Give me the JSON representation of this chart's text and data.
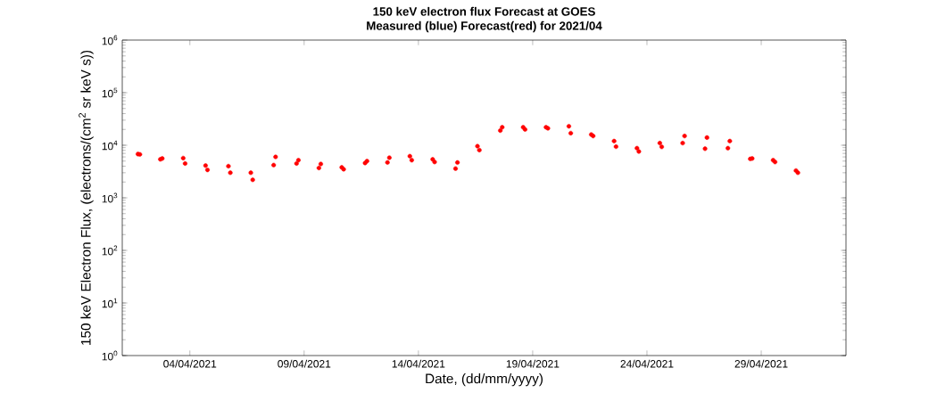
{
  "chart_data": {
    "type": "scatter",
    "title": "150 keV electron flux Forecast at GOES",
    "subtitle": "Measured (blue) Forecast(red) for 2021/04",
    "xlabel": "Date, (dd/mm/yyyy)",
    "ylabel": "150 keV Electron Flux, (electrons/(cm$^{2}$ sr keV s))",
    "x": [
      "2021-04-01T17:30",
      "2021-04-01T19:30",
      "2021-04-02T17:00",
      "2021-04-02T19:00",
      "2021-04-03T17:00",
      "2021-04-03T19:00",
      "2021-04-04T16:30",
      "2021-04-04T18:30",
      "2021-04-05T16:30",
      "2021-04-05T18:30",
      "2021-04-06T16:00",
      "2021-04-06T18:00",
      "2021-04-07T16:00",
      "2021-04-07T18:00",
      "2021-04-08T16:00",
      "2021-04-08T18:00",
      "2021-04-09T15:30",
      "2021-04-09T17:30",
      "2021-04-10T15:30",
      "2021-04-10T17:30",
      "2021-04-11T16:00",
      "2021-04-11T18:00",
      "2021-04-12T15:30",
      "2021-04-12T17:30",
      "2021-04-13T15:00",
      "2021-04-13T17:00",
      "2021-04-14T15:00",
      "2021-04-14T17:00",
      "2021-04-15T15:00",
      "2021-04-15T17:00",
      "2021-04-16T14:00",
      "2021-04-16T16:00",
      "2021-04-17T14:00",
      "2021-04-17T16:00",
      "2021-04-18T14:00",
      "2021-04-18T16:00",
      "2021-04-19T14:00",
      "2021-04-19T16:00",
      "2021-04-20T14:00",
      "2021-04-20T16:00",
      "2021-04-21T13:30",
      "2021-04-21T15:30",
      "2021-04-22T13:30",
      "2021-04-22T15:30",
      "2021-04-23T13:30",
      "2021-04-23T15:30",
      "2021-04-24T13:30",
      "2021-04-24T15:30",
      "2021-04-25T13:30",
      "2021-04-25T15:30",
      "2021-04-26T13:00",
      "2021-04-26T15:00",
      "2021-04-27T13:00",
      "2021-04-27T15:00",
      "2021-04-28T12:30",
      "2021-04-28T14:30",
      "2021-04-29T12:30",
      "2021-04-29T14:30",
      "2021-04-30T12:30",
      "2021-04-30T14:30"
    ],
    "series": [
      {
        "color": "#ff0000",
        "values": [
          6800,
          6700,
          5400,
          5600,
          5700,
          4500,
          4100,
          3400,
          4000,
          3000,
          3000,
          2200,
          4200,
          6000,
          4500,
          5200,
          3700,
          4400,
          3800,
          3500,
          4600,
          5000,
          4700,
          5800,
          6200,
          5200,
          5400,
          4800,
          3600,
          4700,
          9600,
          8100,
          19000,
          22000,
          22000,
          20000,
          22000,
          21000,
          23000,
          17000,
          16000,
          15000,
          12000,
          9400,
          8800,
          7600,
          11000,
          9300,
          11000,
          15000,
          8600,
          14000,
          8800,
          12000,
          5500,
          5600,
          5200,
          4800,
          3300,
          3000
        ]
      }
    ],
    "xlim": [
      "2021-04-01T01:00",
      "2021-05-02T17:00"
    ],
    "xticks": [
      {
        "value": "2021-04-04",
        "label": "04/04/2021"
      },
      {
        "value": "2021-04-09",
        "label": "09/04/2021"
      },
      {
        "value": "2021-04-14",
        "label": "14/04/2021"
      },
      {
        "value": "2021-04-19",
        "label": "19/04/2021"
      },
      {
        "value": "2021-04-24",
        "label": "24/04/2021"
      },
      {
        "value": "2021-04-29",
        "label": "29/04/2021"
      }
    ],
    "ylim": [
      1,
      1000000
    ],
    "log": "y",
    "yticks": [
      {
        "value": 1,
        "label": "10$^{0}$"
      },
      {
        "value": 10,
        "label": "10$^{1}$"
      },
      {
        "value": 100,
        "label": "10$^{2}$"
      },
      {
        "value": 1000,
        "label": "10$^{3}$"
      },
      {
        "value": 10000,
        "label": "10$^{4}$"
      },
      {
        "value": 100000,
        "label": "10$^{5}$"
      },
      {
        "value": 1000000,
        "label": "10$^{6}$"
      }
    ],
    "marker": "circle",
    "grid": false
  }
}
